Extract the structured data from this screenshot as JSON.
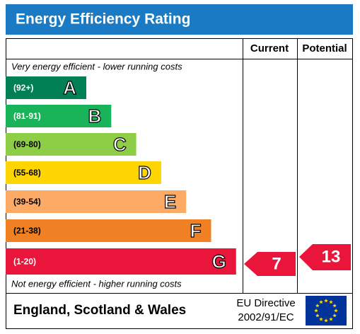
{
  "header": {
    "title": "Energy Efficiency Rating"
  },
  "table": {
    "columns": [
      "Current",
      "Potential"
    ]
  },
  "top_note": "Very energy efficient - lower running costs",
  "bottom_note": "Not energy efficient - higher running costs",
  "bands": [
    {
      "range": "(92+)",
      "letter": "A",
      "color": "#008054"
    },
    {
      "range": "(81-91)",
      "letter": "B",
      "color": "#19b459"
    },
    {
      "range": "(69-80)",
      "letter": "C",
      "color": "#8dce46"
    },
    {
      "range": "(55-68)",
      "letter": "D",
      "color": "#ffd500"
    },
    {
      "range": "(39-54)",
      "letter": "E",
      "color": "#fcaa65"
    },
    {
      "range": "(21-38)",
      "letter": "F",
      "color": "#ef8023"
    },
    {
      "range": "(1-20)",
      "letter": "G",
      "color": "#e9153b"
    }
  ],
  "ratings": {
    "current": "7",
    "potential": "13"
  },
  "footer": {
    "region": "England, Scotland & Wales",
    "directive": [
      "EU Directive",
      "2002/91/EC"
    ]
  }
}
